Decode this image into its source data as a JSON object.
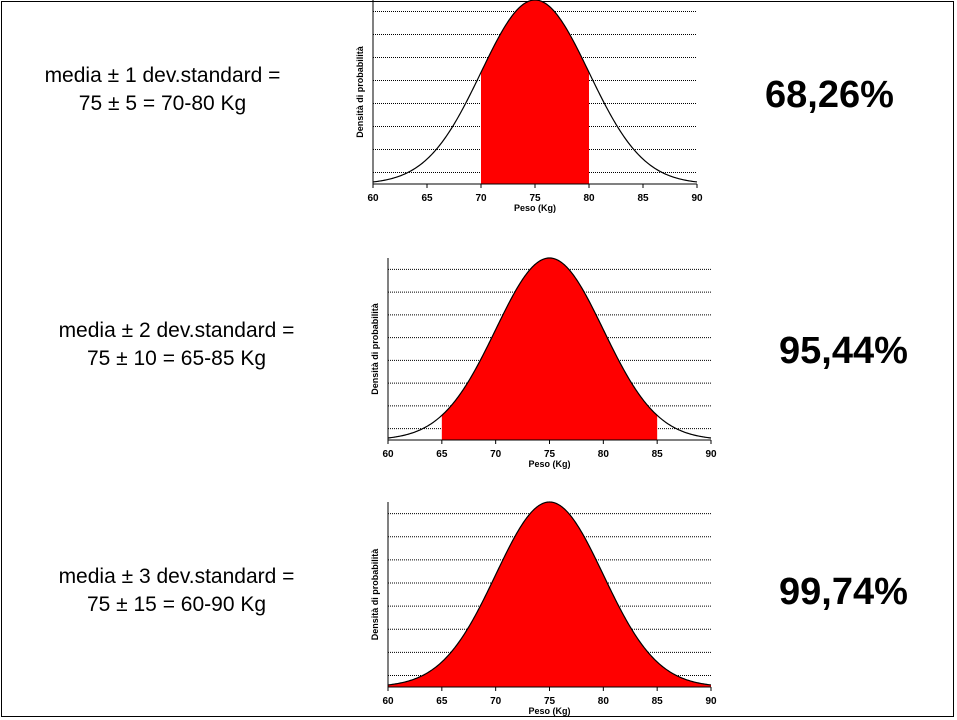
{
  "theme": {
    "accent": "#ff0000",
    "curve": "#000000"
  },
  "panels": [
    {
      "line1": "media ± 1 dev.standard =",
      "line2": "75 ± 5 = 70-80 Kg",
      "percent": "68,26%"
    },
    {
      "line1": "media ± 2 dev.standard =",
      "line2": "75 ± 10 = 65-85 Kg",
      "percent": "95,44%"
    },
    {
      "line1": "media ± 3 dev.standard =",
      "line2": "75 ± 15 = 60-90 Kg",
      "percent": "99,74%"
    }
  ],
  "chart_data": [
    {
      "type": "area",
      "xlabel": "Peso (Kg)",
      "ylabel": "Densità di probabilità",
      "xticks": [
        "60",
        "65",
        "70",
        "75",
        "80",
        "85",
        "90"
      ],
      "xlim": [
        60,
        90
      ],
      "mean": 75,
      "sd": 5,
      "shaded_range": [
        70,
        80
      ],
      "shaded_percent": 68.26,
      "grid": "horizontal dotted"
    },
    {
      "type": "area",
      "xlabel": "Peso (Kg)",
      "ylabel": "Densità di probabilità",
      "xticks": [
        "60",
        "65",
        "70",
        "75",
        "80",
        "85",
        "90"
      ],
      "xlim": [
        60,
        90
      ],
      "mean": 75,
      "sd": 5,
      "shaded_range": [
        65,
        85
      ],
      "shaded_percent": 95.44,
      "grid": "horizontal dotted"
    },
    {
      "type": "area",
      "xlabel": "Peso (Kg)",
      "ylabel": "Densità di probabilità",
      "xticks": [
        "60",
        "65",
        "70",
        "75",
        "80",
        "85",
        "90"
      ],
      "xlim": [
        60,
        90
      ],
      "mean": 75,
      "sd": 5,
      "shaded_range": [
        60,
        90
      ],
      "shaded_percent": 99.74,
      "grid": "horizontal dotted"
    }
  ]
}
